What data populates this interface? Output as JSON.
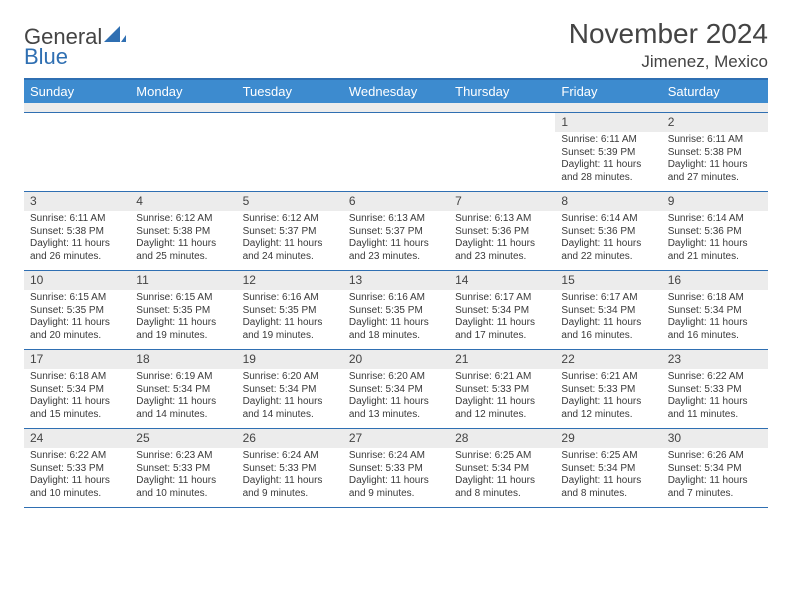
{
  "brand": {
    "part1": "General",
    "part2": "Blue"
  },
  "title": "November 2024",
  "location": "Jimenez, Mexico",
  "colors": {
    "header_bg": "#3d8bcf",
    "rule": "#2f6fb2",
    "daynum_bg": "#ececec",
    "text": "#3a3a3a"
  },
  "day_names": [
    "Sunday",
    "Monday",
    "Tuesday",
    "Wednesday",
    "Thursday",
    "Friday",
    "Saturday"
  ],
  "weeks": [
    [
      null,
      null,
      null,
      null,
      null,
      {
        "n": "1",
        "sr": "6:11 AM",
        "ss": "5:39 PM",
        "dl": "11 hours and 28 minutes."
      },
      {
        "n": "2",
        "sr": "6:11 AM",
        "ss": "5:38 PM",
        "dl": "11 hours and 27 minutes."
      }
    ],
    [
      {
        "n": "3",
        "sr": "6:11 AM",
        "ss": "5:38 PM",
        "dl": "11 hours and 26 minutes."
      },
      {
        "n": "4",
        "sr": "6:12 AM",
        "ss": "5:38 PM",
        "dl": "11 hours and 25 minutes."
      },
      {
        "n": "5",
        "sr": "6:12 AM",
        "ss": "5:37 PM",
        "dl": "11 hours and 24 minutes."
      },
      {
        "n": "6",
        "sr": "6:13 AM",
        "ss": "5:37 PM",
        "dl": "11 hours and 23 minutes."
      },
      {
        "n": "7",
        "sr": "6:13 AM",
        "ss": "5:36 PM",
        "dl": "11 hours and 23 minutes."
      },
      {
        "n": "8",
        "sr": "6:14 AM",
        "ss": "5:36 PM",
        "dl": "11 hours and 22 minutes."
      },
      {
        "n": "9",
        "sr": "6:14 AM",
        "ss": "5:36 PM",
        "dl": "11 hours and 21 minutes."
      }
    ],
    [
      {
        "n": "10",
        "sr": "6:15 AM",
        "ss": "5:35 PM",
        "dl": "11 hours and 20 minutes."
      },
      {
        "n": "11",
        "sr": "6:15 AM",
        "ss": "5:35 PM",
        "dl": "11 hours and 19 minutes."
      },
      {
        "n": "12",
        "sr": "6:16 AM",
        "ss": "5:35 PM",
        "dl": "11 hours and 19 minutes."
      },
      {
        "n": "13",
        "sr": "6:16 AM",
        "ss": "5:35 PM",
        "dl": "11 hours and 18 minutes."
      },
      {
        "n": "14",
        "sr": "6:17 AM",
        "ss": "5:34 PM",
        "dl": "11 hours and 17 minutes."
      },
      {
        "n": "15",
        "sr": "6:17 AM",
        "ss": "5:34 PM",
        "dl": "11 hours and 16 minutes."
      },
      {
        "n": "16",
        "sr": "6:18 AM",
        "ss": "5:34 PM",
        "dl": "11 hours and 16 minutes."
      }
    ],
    [
      {
        "n": "17",
        "sr": "6:18 AM",
        "ss": "5:34 PM",
        "dl": "11 hours and 15 minutes."
      },
      {
        "n": "18",
        "sr": "6:19 AM",
        "ss": "5:34 PM",
        "dl": "11 hours and 14 minutes."
      },
      {
        "n": "19",
        "sr": "6:20 AM",
        "ss": "5:34 PM",
        "dl": "11 hours and 14 minutes."
      },
      {
        "n": "20",
        "sr": "6:20 AM",
        "ss": "5:34 PM",
        "dl": "11 hours and 13 minutes."
      },
      {
        "n": "21",
        "sr": "6:21 AM",
        "ss": "5:33 PM",
        "dl": "11 hours and 12 minutes."
      },
      {
        "n": "22",
        "sr": "6:21 AM",
        "ss": "5:33 PM",
        "dl": "11 hours and 12 minutes."
      },
      {
        "n": "23",
        "sr": "6:22 AM",
        "ss": "5:33 PM",
        "dl": "11 hours and 11 minutes."
      }
    ],
    [
      {
        "n": "24",
        "sr": "6:22 AM",
        "ss": "5:33 PM",
        "dl": "11 hours and 10 minutes."
      },
      {
        "n": "25",
        "sr": "6:23 AM",
        "ss": "5:33 PM",
        "dl": "11 hours and 10 minutes."
      },
      {
        "n": "26",
        "sr": "6:24 AM",
        "ss": "5:33 PM",
        "dl": "11 hours and 9 minutes."
      },
      {
        "n": "27",
        "sr": "6:24 AM",
        "ss": "5:33 PM",
        "dl": "11 hours and 9 minutes."
      },
      {
        "n": "28",
        "sr": "6:25 AM",
        "ss": "5:34 PM",
        "dl": "11 hours and 8 minutes."
      },
      {
        "n": "29",
        "sr": "6:25 AM",
        "ss": "5:34 PM",
        "dl": "11 hours and 8 minutes."
      },
      {
        "n": "30",
        "sr": "6:26 AM",
        "ss": "5:34 PM",
        "dl": "11 hours and 7 minutes."
      }
    ]
  ],
  "labels": {
    "sunrise": "Sunrise:",
    "sunset": "Sunset:",
    "daylight": "Daylight:"
  }
}
